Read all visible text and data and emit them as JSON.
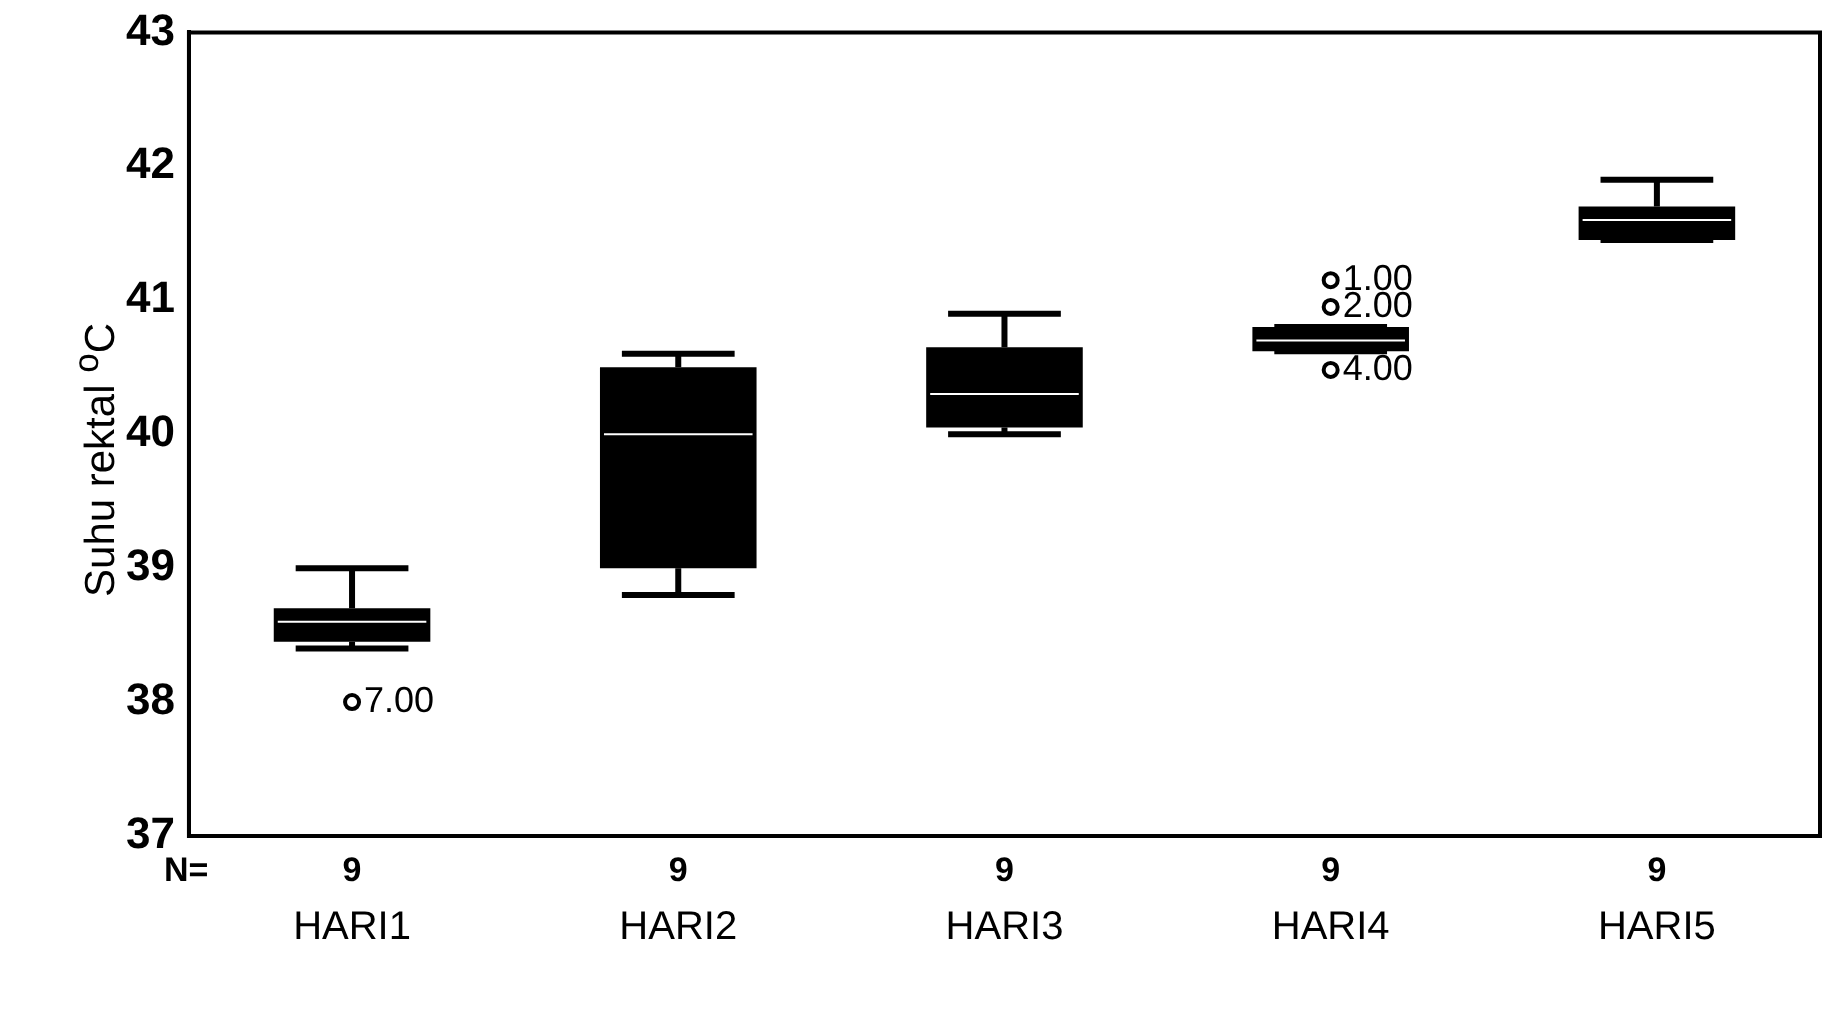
{
  "chart_data": {
    "type": "box",
    "ylabel": "Suhu rektal $^{o}$C",
    "categories": [
      "HARI1",
      "HARI2",
      "HARI3",
      "HARI4",
      "HARI5"
    ],
    "boxes": [
      {
        "low": 38.4,
        "q1": 38.45,
        "median": 38.6,
        "q3": 38.7,
        "high": 39.0,
        "outliers": [
          38.0
        ]
      },
      {
        "low": 38.8,
        "q1": 39.0,
        "median": 40.0,
        "q3": 40.5,
        "high": 40.6
      },
      {
        "low": 40.0,
        "q1": 40.05,
        "median": 40.3,
        "q3": 40.65,
        "high": 40.9
      },
      {
        "low": 40.62,
        "q1": 40.62,
        "median": 40.7,
        "q3": 40.8,
        "high": 40.8,
        "outliers": [
          41.15,
          40.95,
          40.48
        ]
      },
      {
        "low": 41.45,
        "q1": 41.45,
        "median": 41.6,
        "q3": 41.7,
        "high": 41.9
      }
    ],
    "color": "#000000",
    "ylim": [
      37,
      43
    ],
    "yticks": [
      37,
      38,
      39,
      40,
      41,
      42,
      43
    ],
    "grid": false,
    "legend": false,
    "annotations": [
      "N=",
      "9",
      "9",
      "9",
      "9",
      "9",
      "7.00",
      "1.00",
      "2.00",
      "4.00"
    ]
  }
}
